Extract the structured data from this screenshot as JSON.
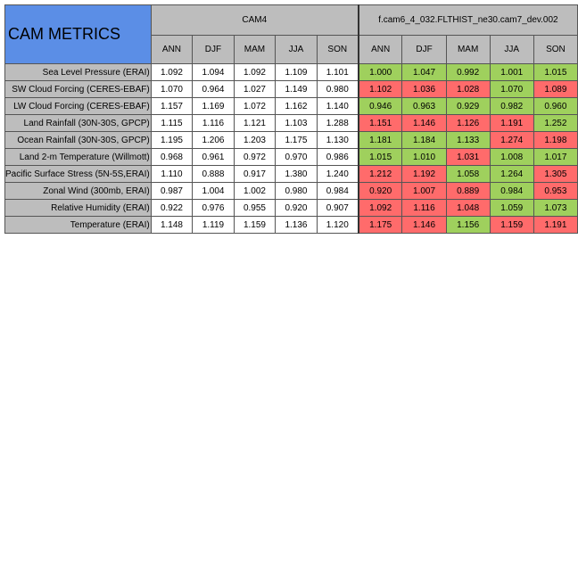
{
  "chart_data": {
    "type": "table",
    "title": "CAM METRICS",
    "groups": [
      {
        "name": "CAM4",
        "columns": [
          "ANN",
          "DJF",
          "MAM",
          "JJA",
          "SON"
        ]
      },
      {
        "name": "f.cam6_4_032.FLTHIST_ne30.cam7_dev.002",
        "columns": [
          "ANN",
          "DJF",
          "MAM",
          "JJA",
          "SON"
        ]
      }
    ],
    "colors": {
      "title_bg": "#5b8ee6",
      "header_bg": "#bdbdbd",
      "better": "#9fd05d",
      "worse": "#ff6b6b"
    },
    "rows": [
      {
        "label": "Sea Level Pressure (ERAI)",
        "cam4": [
          "1.092",
          "1.094",
          "1.092",
          "1.109",
          "1.101"
        ],
        "dev": [
          "1.000",
          "1.047",
          "0.992",
          "1.001",
          "1.015"
        ],
        "dev_status": [
          "good",
          "good",
          "good",
          "good",
          "good"
        ]
      },
      {
        "label": "SW Cloud Forcing (CERES-EBAF)",
        "cam4": [
          "1.070",
          "0.964",
          "1.027",
          "1.149",
          "0.980"
        ],
        "dev": [
          "1.102",
          "1.036",
          "1.028",
          "1.070",
          "1.089"
        ],
        "dev_status": [
          "bad",
          "bad",
          "bad",
          "good",
          "bad"
        ]
      },
      {
        "label": "LW Cloud Forcing (CERES-EBAF)",
        "cam4": [
          "1.157",
          "1.169",
          "1.072",
          "1.162",
          "1.140"
        ],
        "dev": [
          "0.946",
          "0.963",
          "0.929",
          "0.982",
          "0.960"
        ],
        "dev_status": [
          "good",
          "good",
          "good",
          "good",
          "good"
        ]
      },
      {
        "label": "Land Rainfall (30N-30S, GPCP)",
        "cam4": [
          "1.115",
          "1.116",
          "1.121",
          "1.103",
          "1.288"
        ],
        "dev": [
          "1.151",
          "1.146",
          "1.126",
          "1.191",
          "1.252"
        ],
        "dev_status": [
          "bad",
          "bad",
          "bad",
          "bad",
          "good"
        ]
      },
      {
        "label": "Ocean Rainfall (30N-30S, GPCP)",
        "cam4": [
          "1.195",
          "1.206",
          "1.203",
          "1.175",
          "1.130"
        ],
        "dev": [
          "1.181",
          "1.184",
          "1.133",
          "1.274",
          "1.198"
        ],
        "dev_status": [
          "good",
          "good",
          "good",
          "bad",
          "bad"
        ]
      },
      {
        "label": "Land 2-m Temperature (Willmott)",
        "cam4": [
          "0.968",
          "0.961",
          "0.972",
          "0.970",
          "0.986"
        ],
        "dev": [
          "1.015",
          "1.010",
          "1.031",
          "1.008",
          "1.017"
        ],
        "dev_status": [
          "good",
          "good",
          "bad",
          "good",
          "good"
        ]
      },
      {
        "label": "Pacific Surface Stress (5N-5S,ERAI)",
        "cam4": [
          "1.110",
          "0.888",
          "0.917",
          "1.380",
          "1.240"
        ],
        "dev": [
          "1.212",
          "1.192",
          "1.058",
          "1.264",
          "1.305"
        ],
        "dev_status": [
          "bad",
          "bad",
          "good",
          "good",
          "bad"
        ]
      },
      {
        "label": "Zonal Wind (300mb, ERAI)",
        "cam4": [
          "0.987",
          "1.004",
          "1.002",
          "0.980",
          "0.984"
        ],
        "dev": [
          "0.920",
          "1.007",
          "0.889",
          "0.984",
          "0.953"
        ],
        "dev_status": [
          "bad",
          "bad",
          "bad",
          "good",
          "bad"
        ]
      },
      {
        "label": "Relative Humidity (ERAI)",
        "cam4": [
          "0.922",
          "0.976",
          "0.955",
          "0.920",
          "0.907"
        ],
        "dev": [
          "1.092",
          "1.116",
          "1.048",
          "1.059",
          "1.073"
        ],
        "dev_status": [
          "bad",
          "bad",
          "bad",
          "good",
          "good"
        ]
      },
      {
        "label": "Temperature (ERAI)",
        "cam4": [
          "1.148",
          "1.119",
          "1.159",
          "1.136",
          "1.120"
        ],
        "dev": [
          "1.175",
          "1.146",
          "1.156",
          "1.159",
          "1.191"
        ],
        "dev_status": [
          "bad",
          "bad",
          "good",
          "bad",
          "bad"
        ]
      }
    ]
  }
}
